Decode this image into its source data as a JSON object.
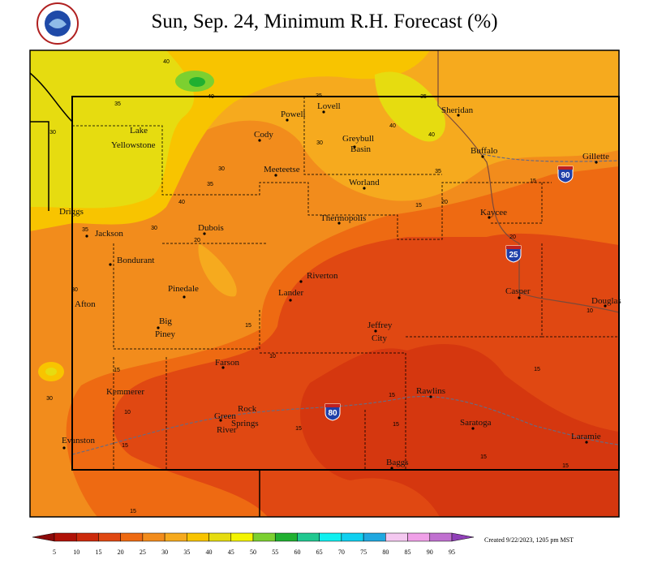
{
  "title": "Sun, Sep. 24, Minimum R.H. Forecast (%)",
  "places": [
    "Sheridan",
    "Lovell",
    "Powell",
    "Cody",
    "Greybull",
    "Basin",
    "Lake",
    "Yellowstone",
    "Buffalo",
    "Gillette",
    "Meeteetse",
    "Worland",
    "Driggs",
    "Thermopolis",
    "Kaycee",
    "Dubois",
    "Jackson",
    "Bondurant",
    "Riverton",
    "Casper",
    "Pinedale",
    "Lander",
    "Douglas",
    "Afton",
    "Big",
    "Piney",
    "Jeffrey",
    "City",
    "Farson",
    "Kemmerer",
    "Rawlins",
    "Rock",
    "Springs",
    "Green",
    "River",
    "Saratoga",
    "Evanston",
    "Laramie",
    "Baggs"
  ],
  "contour_labels": [
    40,
    35,
    40,
    35,
    35,
    30,
    30,
    40,
    40,
    35,
    30,
    35,
    40,
    30,
    35,
    20,
    20,
    15,
    15,
    20,
    30,
    15,
    10,
    10,
    15,
    15,
    30,
    10,
    15,
    15,
    15,
    15,
    15,
    15,
    15
  ],
  "highways": [
    "90",
    "25",
    "80"
  ],
  "legend": {
    "values": [
      5,
      10,
      15,
      20,
      25,
      30,
      35,
      40,
      45,
      50,
      55,
      60,
      65,
      70,
      75,
      80,
      85,
      90,
      95
    ],
    "colors": [
      "#8b0a0a",
      "#b01208",
      "#cc2a0c",
      "#e04812",
      "#ee6a12",
      "#f28c1c",
      "#f6aa1e",
      "#f8c400",
      "#e6dc10",
      "#f4f400",
      "#7cd030",
      "#20b030",
      "#20c890",
      "#10f0f0",
      "#10d0f0",
      "#20a8e0",
      "#f4c8f0",
      "#f0a0e8",
      "#c070d0",
      "#9040b8"
    ]
  },
  "credit": "Created 9/22/2023, 1205 pm MST"
}
